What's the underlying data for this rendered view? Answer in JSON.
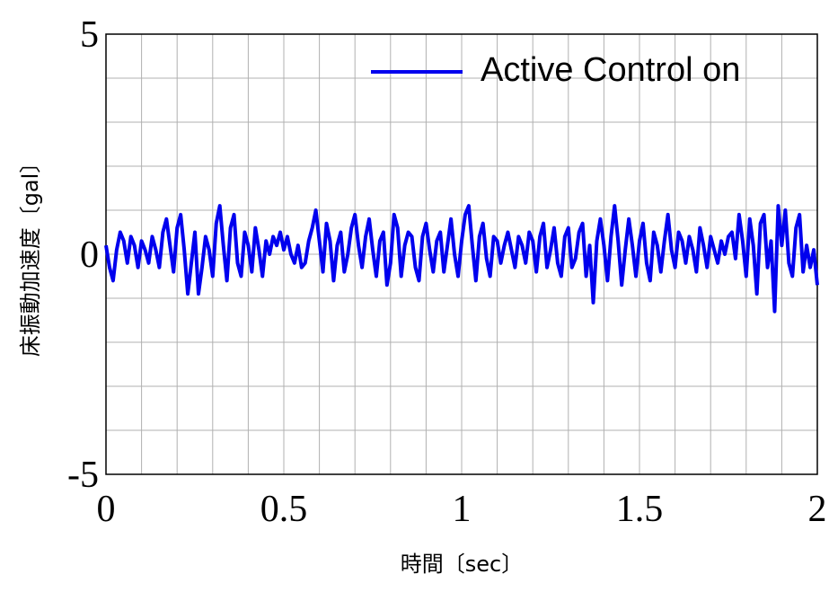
{
  "chart_data": {
    "type": "line",
    "xlabel": "時間〔sec〕",
    "ylabel": "床振動加速度〔gal〕",
    "xlim": [
      0,
      2
    ],
    "xticks": [
      0,
      0.5,
      1,
      1.5,
      2
    ],
    "ylim": [
      -5,
      5
    ],
    "yticks": [
      -5,
      0,
      5
    ],
    "grid": true,
    "legend": "upper right",
    "x": [
      0,
      0.01,
      0.02,
      0.03,
      0.04,
      0.05,
      0.06,
      0.07,
      0.08,
      0.09,
      0.1,
      0.11,
      0.12,
      0.13,
      0.14,
      0.15,
      0.16,
      0.17,
      0.18,
      0.19,
      0.2,
      0.21,
      0.22,
      0.23,
      0.24,
      0.25,
      0.26,
      0.27,
      0.28,
      0.29,
      0.3,
      0.31,
      0.32,
      0.33,
      0.34,
      0.35,
      0.36,
      0.37,
      0.38,
      0.39,
      0.4,
      0.41,
      0.42,
      0.43,
      0.44,
      0.45,
      0.46,
      0.47,
      0.48,
      0.49,
      0.5,
      0.51,
      0.52,
      0.53,
      0.54,
      0.55,
      0.56,
      0.57,
      0.58,
      0.59,
      0.6,
      0.61,
      0.62,
      0.63,
      0.64,
      0.65,
      0.66,
      0.67,
      0.68,
      0.69,
      0.7,
      0.71,
      0.72,
      0.73,
      0.74,
      0.75,
      0.76,
      0.77,
      0.78,
      0.79,
      0.8,
      0.81,
      0.82,
      0.83,
      0.84,
      0.85,
      0.86,
      0.87,
      0.88,
      0.89,
      0.9,
      0.91,
      0.92,
      0.93,
      0.94,
      0.95,
      0.96,
      0.97,
      0.98,
      0.99,
      1,
      1.01,
      1.02,
      1.03,
      1.04,
      1.05,
      1.06,
      1.07,
      1.08,
      1.09,
      1.1,
      1.11,
      1.12,
      1.13,
      1.14,
      1.15,
      1.16,
      1.17,
      1.18,
      1.19,
      1.2,
      1.21,
      1.22,
      1.23,
      1.24,
      1.25,
      1.26,
      1.27,
      1.28,
      1.29,
      1.3,
      1.31,
      1.32,
      1.33,
      1.34,
      1.35,
      1.36,
      1.37,
      1.38,
      1.39,
      1.4,
      1.41,
      1.42,
      1.43,
      1.44,
      1.45,
      1.46,
      1.47,
      1.48,
      1.49,
      1.5,
      1.51,
      1.52,
      1.53,
      1.54,
      1.55,
      1.56,
      1.57,
      1.58,
      1.59,
      1.6,
      1.61,
      1.62,
      1.63,
      1.64,
      1.65,
      1.66,
      1.67,
      1.68,
      1.69,
      1.7,
      1.71,
      1.72,
      1.73,
      1.74,
      1.75,
      1.76,
      1.77,
      1.78,
      1.79,
      1.8,
      1.81,
      1.82,
      1.83,
      1.84,
      1.85,
      1.86,
      1.87,
      1.88,
      1.89,
      1.9,
      1.91,
      1.92,
      1.93,
      1.94,
      1.95,
      1.96,
      1.97,
      1.98,
      1.99,
      2
    ],
    "series": [
      {
        "name": "Active Control on",
        "color": "#0000ee",
        "values": [
          0.2,
          -0.3,
          -0.6,
          0.1,
          0.5,
          0.3,
          -0.2,
          0.4,
          0.2,
          -0.3,
          0.3,
          0.1,
          -0.2,
          0.4,
          0.1,
          -0.3,
          0.5,
          0.8,
          0.2,
          -0.4,
          0.6,
          0.9,
          0.1,
          -0.9,
          -0.2,
          0.5,
          -0.9,
          -0.3,
          0.4,
          0.1,
          -0.5,
          0.7,
          1.1,
          0.2,
          -0.6,
          0.6,
          0.9,
          -0.2,
          -0.5,
          0.5,
          0.2,
          -0.4,
          0.6,
          0.1,
          -0.5,
          0.3,
          0.0,
          0.4,
          0.2,
          0.5,
          0.1,
          0.4,
          0.0,
          -0.2,
          0.2,
          -0.3,
          -0.2,
          0.3,
          0.6,
          1.0,
          0.3,
          -0.4,
          0.7,
          0.3,
          -0.6,
          0.2,
          0.5,
          -0.4,
          0.0,
          0.6,
          0.9,
          0.2,
          -0.3,
          0.4,
          0.8,
          0.1,
          -0.5,
          0.3,
          0.5,
          -0.7,
          -0.2,
          0.9,
          0.6,
          -0.5,
          0.2,
          0.5,
          0.4,
          -0.3,
          -0.6,
          0.4,
          0.7,
          0.1,
          -0.4,
          0.3,
          0.5,
          -0.4,
          0.2,
          0.8,
          0.0,
          -0.5,
          0.3,
          0.9,
          1.1,
          0.2,
          -0.6,
          0.4,
          0.7,
          -0.1,
          -0.5,
          0.4,
          0.3,
          -0.2,
          0.2,
          0.5,
          0.1,
          -0.3,
          0.4,
          0.2,
          -0.2,
          0.5,
          0.3,
          -0.4,
          0.4,
          0.7,
          -0.3,
          0.1,
          0.6,
          -0.2,
          -0.5,
          0.4,
          0.6,
          -0.3,
          -0.1,
          0.5,
          0.7,
          -0.5,
          0.2,
          -1.1,
          0.3,
          0.8,
          0.2,
          -0.6,
          0.4,
          1.1,
          0.3,
          -0.7,
          0.1,
          0.8,
          0.2,
          -0.5,
          0.3,
          0.7,
          -0.2,
          -0.6,
          0.5,
          0.2,
          -0.4,
          0.3,
          0.9,
          0.1,
          -0.3,
          0.5,
          0.3,
          -0.2,
          0.4,
          0.1,
          -0.4,
          0.6,
          0.2,
          -0.3,
          0.4,
          0.1,
          -0.2,
          0.3,
          0.0,
          0.4,
          0.5,
          -0.1,
          0.9,
          0.3,
          -0.5,
          0.8,
          0.2,
          -0.9,
          0.7,
          0.9,
          -0.3,
          0.3,
          -1.3,
          1.1,
          0.2,
          1.0,
          -0.2,
          -0.5,
          0.6,
          0.9,
          -0.4,
          0.2,
          -0.3,
          0.1,
          -0.7
        ]
      }
    ]
  }
}
